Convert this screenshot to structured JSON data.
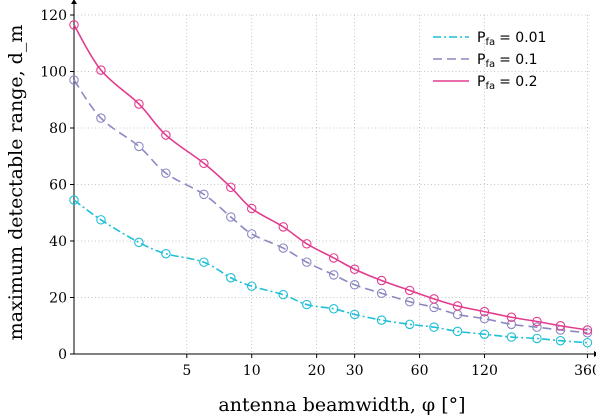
{
  "chart_data": {
    "type": "line",
    "xlabel": "antenna beamwidth, φ [°]",
    "ylabel": "maximum detectable range, d_m",
    "x_scale": "log",
    "xlim": [
      1.5,
      370
    ],
    "ylim": [
      0,
      120
    ],
    "x_ticks": [
      5,
      10,
      20,
      30,
      60,
      120,
      360
    ],
    "y_ticks": [
      0,
      20,
      40,
      60,
      80,
      100,
      120
    ],
    "grid": true,
    "legend_position": "top-right",
    "x": [
      1.5,
      2,
      3,
      4,
      6,
      8,
      10,
      14,
      18,
      24,
      30,
      40,
      54,
      70,
      90,
      120,
      160,
      210,
      270,
      360
    ],
    "series": [
      {
        "name": "P_fa = 0.01",
        "legend_main": "P",
        "legend_sub": "fa",
        "legend_value": "= 0.01",
        "color": "#1fbfd6",
        "style": "dashdot",
        "values": [
          54.5,
          47.5,
          39.5,
          35.5,
          32.5,
          27,
          24,
          21,
          17.5,
          16,
          14,
          12,
          10.5,
          9.5,
          8,
          7,
          6,
          5.5,
          4.7,
          4
        ]
      },
      {
        "name": "P_fa = 0.1",
        "legend_main": "P",
        "legend_sub": "fa",
        "legend_value": "= 0.1",
        "color": "#8c89c2",
        "style": "dashed",
        "values": [
          97,
          83.5,
          73.5,
          64,
          56.5,
          48.5,
          42.5,
          37.5,
          32.5,
          28,
          24.5,
          21.5,
          18.5,
          16.5,
          14,
          12.5,
          10.5,
          9.5,
          8.5,
          7.5
        ]
      },
      {
        "name": "P_fa = 0.2",
        "legend_main": "P",
        "legend_sub": "fa",
        "legend_value": "= 0.2",
        "color": "#e23c8f",
        "style": "solid",
        "values": [
          116.5,
          100.5,
          88.5,
          77.5,
          67.5,
          59,
          51.5,
          45,
          39,
          34,
          30,
          26,
          22.5,
          19.5,
          17,
          15,
          13,
          11.5,
          10,
          8.5
        ]
      }
    ]
  }
}
